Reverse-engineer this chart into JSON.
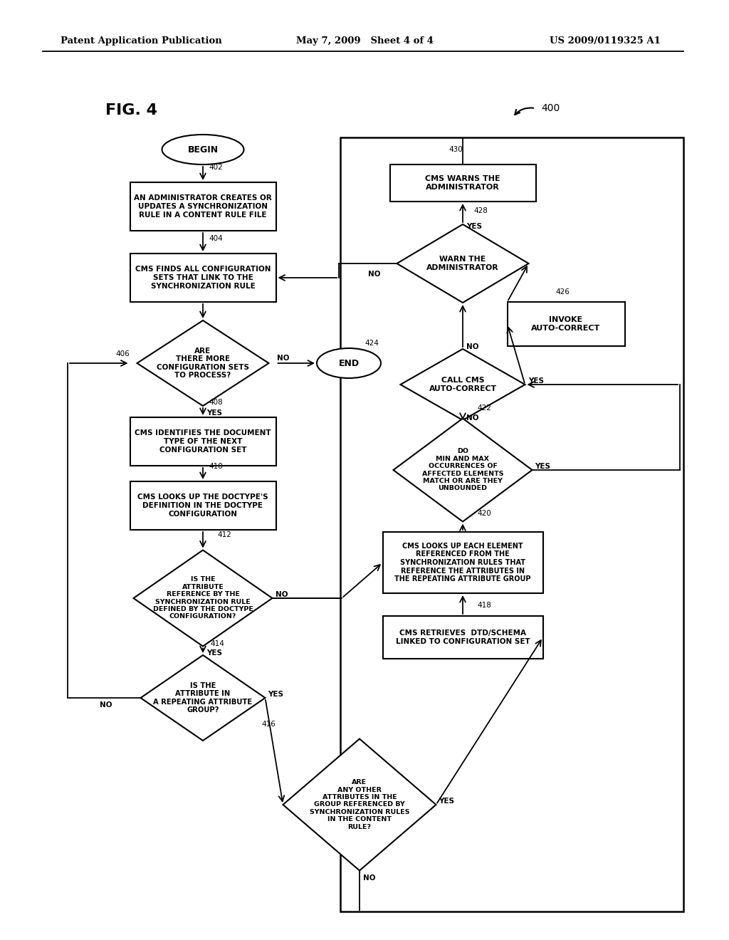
{
  "header_left": "Patent Application Publication",
  "header_center": "May 7, 2009   Sheet 4 of 4",
  "header_right": "US 2009/0119325 A1",
  "fig_label": "FIG. 4",
  "diagram_label": "400",
  "background_color": "#ffffff"
}
